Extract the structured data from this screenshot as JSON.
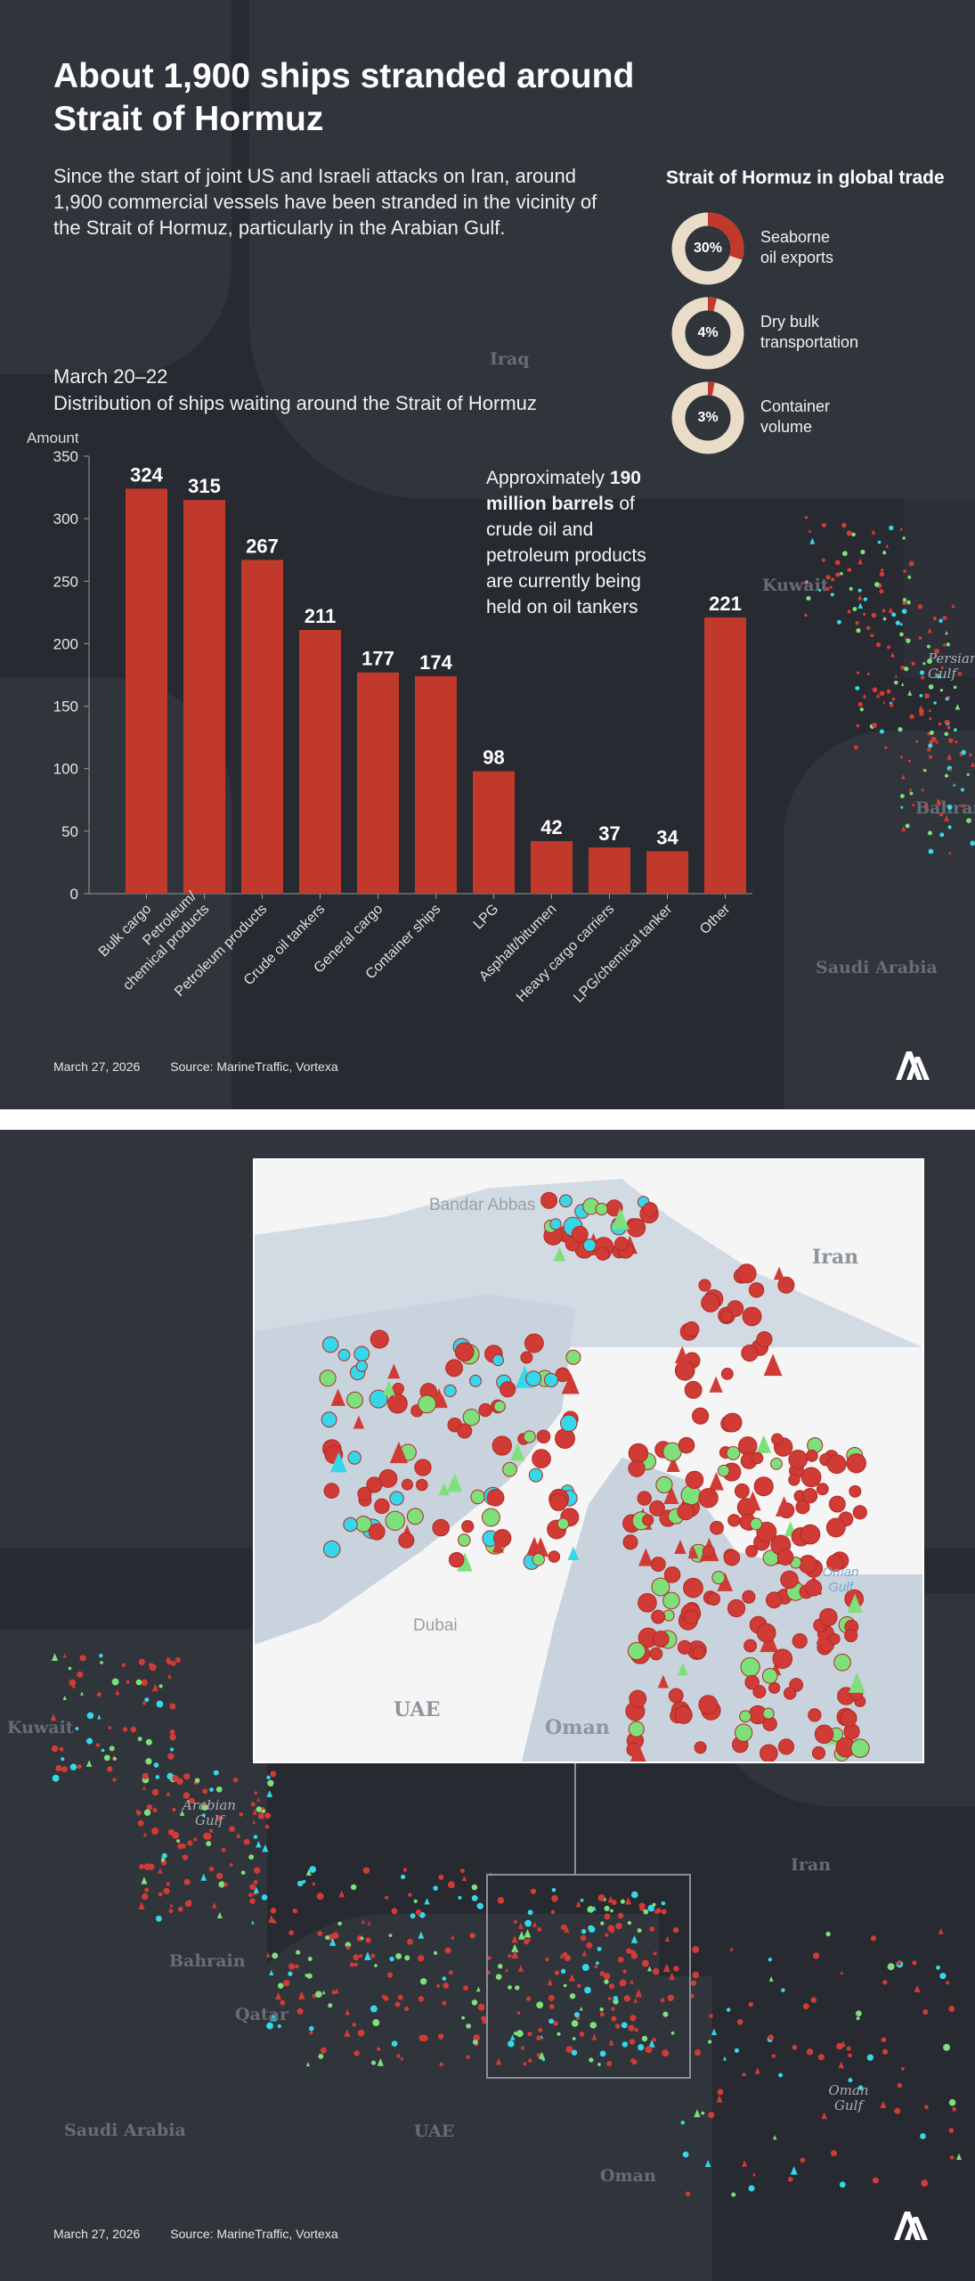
{
  "header": {
    "title": "About 1,900 ships stranded around Strait of Hormuz",
    "intro": "Since the start of joint US and Israeli attacks on Iran, around 1,900 commercial vessels have been stranded in the vicinity of the Strait of Hormuz, particularly in the Arabian Gulf.",
    "period": "March 20–22",
    "chart_subtitle": "Distribution of ships waiting around the Strait of Hormuz"
  },
  "global_trade": {
    "title": "Strait of Hormuz in global trade",
    "items": [
      {
        "value": 30,
        "pct_label": "30%",
        "label_line1": "Seaborne",
        "label_line2": "oil exports"
      },
      {
        "value": 4,
        "pct_label": "4%",
        "label_line1": "Dry bulk",
        "label_line2": "transportation"
      },
      {
        "value": 3,
        "pct_label": "3%",
        "label_line1": "Container",
        "label_line2": "volume"
      }
    ],
    "colors": {
      "fill": "#c0392b",
      "track": "#e9dcc8"
    }
  },
  "callout": {
    "text_before": "Approximately ",
    "text_bold": "190 million barrels",
    "text_after": " of crude oil and petroleum products are currently being held on oil tankers"
  },
  "chart_data": {
    "type": "bar",
    "title": "",
    "ylabel": "Amount",
    "xlabel": "",
    "ylim": [
      0,
      350
    ],
    "yticks": [
      0,
      50,
      100,
      150,
      200,
      250,
      300,
      350
    ],
    "categories": [
      "Bulk cargo",
      "Petroleum/\nchemical products",
      "Petroleum products",
      "Crude oil tankers",
      "General cargo",
      "Container ships",
      "LPG",
      "Asphalt/bitumen",
      "Heavy cargo carriers",
      "LPG/chemical tanker",
      "Other"
    ],
    "values": [
      324,
      315,
      267,
      211,
      177,
      174,
      98,
      42,
      37,
      34,
      221
    ],
    "bar_color": "#c0392b",
    "grid": false
  },
  "map_labels": {
    "iraq": "Iraq",
    "kuwait": "Kuwait",
    "persian_gulf": "Persian Gulf",
    "bahrain": "Bahrain",
    "saudi_arabia": "Saudi Arabia",
    "iran": "Iran",
    "arabian_gulf": "Arabian Gulf",
    "qatar": "Qatar",
    "uae": "UAE",
    "oman": "Oman",
    "oman_gulf": "Oman Gulf"
  },
  "inset_labels": {
    "bandar_abbas": "Bandar Abbas",
    "iran": "Iran",
    "dubai": "Dubai",
    "uae": "UAE",
    "oman": "Oman",
    "oman_gulf": "Oman Gulf"
  },
  "footer": {
    "date": "March 27, 2026",
    "source": "Source: MarineTraffic, Vortexa"
  },
  "marker_colors": {
    "tanker": "#d13b35",
    "cargo": "#7ee07a",
    "other": "#35d7ea"
  }
}
